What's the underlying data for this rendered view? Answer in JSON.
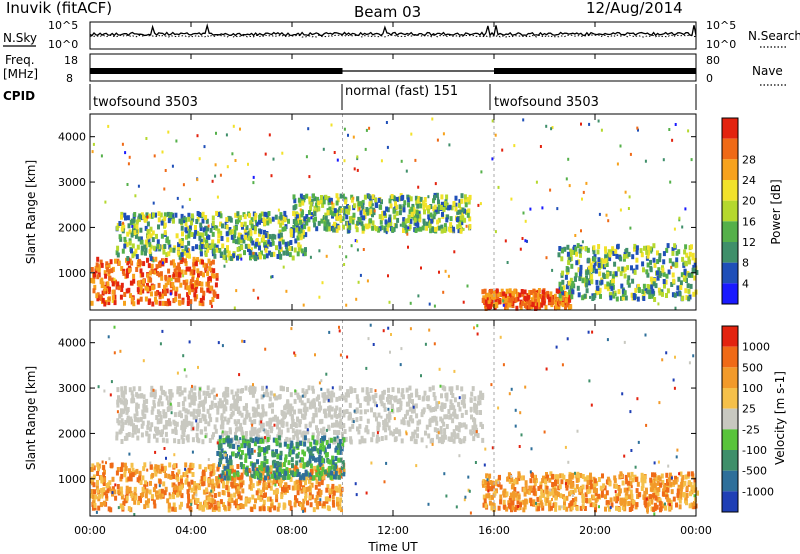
{
  "header": {
    "station": "Inuvik (fitACF)",
    "beam": "Beam 03",
    "date": "12/Aug/2014"
  },
  "noise_panel": {
    "left_label": "N.Sky",
    "left_ticks": [
      "10^5",
      "10^0"
    ],
    "right_label": "N.Search",
    "right_ticks": [
      "10^5",
      "10^0"
    ],
    "legend_line": "dotted"
  },
  "freq_panel": {
    "left_label_1": "Freq.",
    "left_label_2": "[MHz]",
    "left_ticks": [
      "18",
      "8"
    ],
    "right_label": "Nave",
    "right_ticks": [
      "80",
      "0"
    ],
    "legend_line": "dotted"
  },
  "cpid_panel": {
    "label": "CPID",
    "segments": [
      {
        "name": "twofsound 3503",
        "start_hour": 0,
        "end_hour": 10
      },
      {
        "name": "normal (fast) 151",
        "start_hour": 10,
        "end_hour": 16
      },
      {
        "name": "twofsound 3503",
        "start_hour": 16,
        "end_hour": 24
      }
    ]
  },
  "chart_data": [
    {
      "type": "heatmap",
      "title": "",
      "xlabel": "Time UT",
      "ylabel": "Slant Range [km]",
      "xlim": [
        0,
        24
      ],
      "ylim": [
        180,
        4500
      ],
      "x_ticks": [
        "00:00",
        "04:00",
        "08:00",
        "12:00",
        "16:00",
        "20:00",
        "00:00"
      ],
      "y_ticks": [
        1000,
        2000,
        3000,
        4000
      ],
      "colorbar": {
        "label": "Power [dB]",
        "ticks": [
          4,
          8,
          12,
          16,
          20,
          24,
          28
        ],
        "range": [
          0,
          30
        ],
        "colors": [
          "#1a1aff",
          "#1f4fb8",
          "#3f8f6a",
          "#55b04a",
          "#b5d82e",
          "#f2e22a",
          "#f7a21c",
          "#ef6a17",
          "#e3230f"
        ]
      },
      "echo_regions": [
        {
          "x": [
            0.0,
            5.0
          ],
          "y": [
            300,
            1300
          ],
          "level": "high"
        },
        {
          "x": [
            1.0,
            8.5
          ],
          "y": [
            1300,
            2300
          ],
          "level": "mid"
        },
        {
          "x": [
            8.0,
            15.0
          ],
          "y": [
            1900,
            2700
          ],
          "level": "mid"
        },
        {
          "x": [
            15.5,
            19.0
          ],
          "y": [
            200,
            600
          ],
          "level": "high"
        },
        {
          "x": [
            18.5,
            24.0
          ],
          "y": [
            400,
            1600
          ],
          "level": "mid"
        }
      ]
    },
    {
      "type": "heatmap",
      "title": "",
      "xlabel": "Time UT",
      "ylabel": "Slant Range [km]",
      "xlim": [
        0,
        24
      ],
      "ylim": [
        180,
        4500
      ],
      "x_ticks": [
        "00:00",
        "04:00",
        "08:00",
        "12:00",
        "16:00",
        "20:00",
        "00:00"
      ],
      "y_ticks": [
        1000,
        2000,
        3000,
        4000
      ],
      "colorbar": {
        "label": "Velocity [m s-1]",
        "ticks": [
          "1000",
          "500",
          "100",
          "25",
          "-25",
          "-100",
          "-500",
          "-1000"
        ],
        "range": [
          -1000,
          1000
        ],
        "colors": [
          "#1f3fb5",
          "#2e6f9a",
          "#3f8f6a",
          "#58c43a",
          "#c8c8c0",
          "#f5c04a",
          "#f29a2a",
          "#ef6a17",
          "#e3230f"
        ]
      },
      "echo_regions": [
        {
          "x": [
            1.0,
            15.5
          ],
          "y": [
            1800,
            3000
          ],
          "level": "ground"
        },
        {
          "x": [
            0.0,
            10.0
          ],
          "y": [
            300,
            1300
          ],
          "level": "away"
        },
        {
          "x": [
            5.0,
            10.0
          ],
          "y": [
            1000,
            1900
          ],
          "level": "toward"
        },
        {
          "x": [
            15.5,
            24.0
          ],
          "y": [
            300,
            1100
          ],
          "level": "away"
        }
      ]
    }
  ]
}
